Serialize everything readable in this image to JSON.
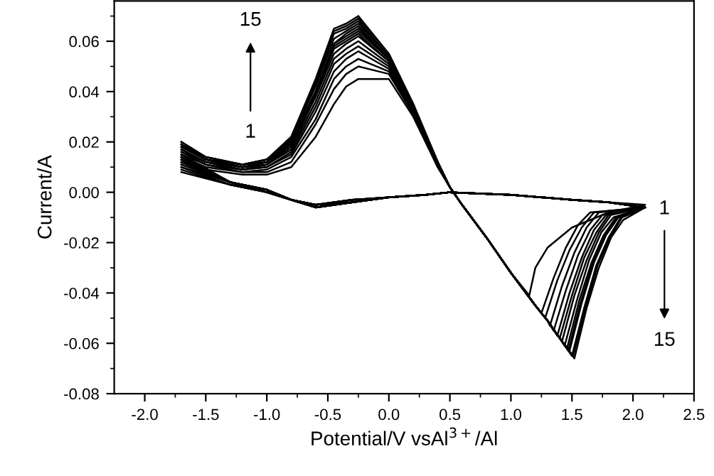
{
  "chart_data": {
    "type": "line",
    "xlabel": "Potential/V vsAl$^{3+}$/Al",
    "ylabel": "Current/A",
    "xlim": [
      -2.25,
      2.5
    ],
    "ylim": [
      -0.08,
      0.076
    ],
    "xticks": [
      {
        "value": -2.0,
        "label": "-2.0"
      },
      {
        "value": -1.75,
        "label": null
      },
      {
        "value": -1.5,
        "label": "-1.5"
      },
      {
        "value": -1.25,
        "label": null
      },
      {
        "value": -1.0,
        "label": "-1.0"
      },
      {
        "value": -0.75,
        "label": null
      },
      {
        "value": -0.5,
        "label": "-0.5"
      },
      {
        "value": -0.25,
        "label": null
      },
      {
        "value": 0.0,
        "label": "0.0"
      },
      {
        "value": 0.25,
        "label": null
      },
      {
        "value": 0.5,
        "label": "0.5"
      },
      {
        "value": 0.75,
        "label": null
      },
      {
        "value": 1.0,
        "label": "1.0"
      },
      {
        "value": 1.25,
        "label": null
      },
      {
        "value": 1.5,
        "label": "1.5"
      },
      {
        "value": 1.75,
        "label": null
      },
      {
        "value": 2.0,
        "label": "2.0"
      },
      {
        "value": 2.25,
        "label": null
      },
      {
        "value": 2.5,
        "label": "2.5"
      }
    ],
    "yticks": [
      {
        "value": -0.08,
        "label": "-0.08"
      },
      {
        "value": -0.07,
        "label": null
      },
      {
        "value": -0.06,
        "label": "-0.06"
      },
      {
        "value": -0.05,
        "label": null
      },
      {
        "value": -0.04,
        "label": "-0.04"
      },
      {
        "value": -0.03,
        "label": null
      },
      {
        "value": -0.02,
        "label": "-0.02"
      },
      {
        "value": -0.01,
        "label": null
      },
      {
        "value": 0.0,
        "label": "0.00"
      },
      {
        "value": 0.01,
        "label": null
      },
      {
        "value": 0.02,
        "label": "0.02"
      },
      {
        "value": 0.03,
        "label": null
      },
      {
        "value": 0.04,
        "label": "0.04"
      },
      {
        "value": 0.05,
        "label": null
      },
      {
        "value": 0.06,
        "label": "0.06"
      },
      {
        "value": 0.07,
        "label": null
      }
    ],
    "grid": false,
    "marker": "none",
    "line_style": "solid",
    "annotations": [
      "1",
      "15",
      "1",
      "15"
    ],
    "series": [
      {
        "color": "#000000",
        "x": [
          -1.7,
          -1.5,
          -1.2,
          -1.0,
          -0.8,
          -0.6,
          -0.45,
          -0.35,
          -0.25,
          0.0,
          0.2,
          0.4,
          0.5,
          0.6,
          0.8,
          1.0,
          1.15,
          1.2,
          1.3,
          1.5,
          1.8,
          2.1,
          1.8,
          1.5,
          1.0,
          0.5,
          0.3,
          0.0,
          -0.3,
          -0.6,
          -0.8,
          -1.0,
          -1.3,
          -1.7
        ],
        "values": [
          0.012,
          0.009,
          0.007,
          0.007,
          0.01,
          0.022,
          0.035,
          0.042,
          0.045,
          0.045,
          0.03,
          0.01,
          0.002,
          -0.005,
          -0.018,
          -0.032,
          -0.041,
          -0.03,
          -0.022,
          -0.014,
          -0.008,
          -0.005,
          -0.004,
          -0.003,
          -0.001,
          0.0,
          -0.001,
          -0.002,
          -0.003,
          -0.005,
          -0.003,
          0.0,
          0.003,
          0.008
        ]
      },
      {
        "color": "#000000",
        "x": [
          -1.7,
          -1.5,
          -1.2,
          -1.0,
          -0.8,
          -0.6,
          -0.45,
          -0.35,
          -0.25,
          0.0,
          0.2,
          0.4,
          0.5,
          0.6,
          0.8,
          1.0,
          1.2,
          1.25,
          1.35,
          1.45,
          1.55,
          1.65,
          2.1,
          1.8,
          1.5,
          1.0,
          0.5,
          0.3,
          0.0,
          -0.3,
          -0.6,
          -0.8,
          -1.0,
          -1.3,
          -1.7
        ],
        "values": [
          0.014,
          0.01,
          0.008,
          0.008,
          0.012,
          0.027,
          0.041,
          0.047,
          0.05,
          0.047,
          0.031,
          0.01,
          0.002,
          -0.005,
          -0.018,
          -0.032,
          -0.045,
          -0.048,
          -0.034,
          -0.022,
          -0.013,
          -0.008,
          -0.006,
          -0.004,
          -0.003,
          -0.001,
          0.0,
          -0.001,
          -0.002,
          -0.003,
          -0.005,
          -0.003,
          0.0,
          0.003,
          0.009
        ]
      },
      {
        "color": "#000000",
        "x": [
          -1.7,
          -1.5,
          -1.2,
          -1.0,
          -0.8,
          -0.6,
          -0.45,
          -0.35,
          -0.25,
          0.0,
          0.2,
          0.4,
          0.5,
          0.6,
          0.8,
          1.0,
          1.2,
          1.28,
          1.38,
          1.48,
          1.58,
          1.68,
          2.1,
          1.8,
          1.5,
          1.0,
          0.5,
          0.3,
          0.0,
          -0.3,
          -0.6,
          -0.8,
          -1.0,
          -1.3,
          -1.7
        ],
        "values": [
          0.015,
          0.011,
          0.008,
          0.009,
          0.014,
          0.029,
          0.045,
          0.05,
          0.053,
          0.048,
          0.032,
          0.011,
          0.002,
          -0.005,
          -0.018,
          -0.032,
          -0.045,
          -0.05,
          -0.035,
          -0.023,
          -0.014,
          -0.008,
          -0.006,
          -0.004,
          -0.003,
          -0.001,
          0.0,
          -0.001,
          -0.002,
          -0.003,
          -0.005,
          -0.003,
          0.0,
          0.003,
          0.01
        ]
      },
      {
        "color": "#000000",
        "x": [
          -1.7,
          -1.5,
          -1.2,
          -1.0,
          -0.8,
          -0.6,
          -0.45,
          -0.35,
          -0.25,
          0.0,
          0.2,
          0.4,
          0.5,
          0.6,
          0.8,
          1.0,
          1.2,
          1.3,
          1.32,
          1.42,
          1.52,
          1.62,
          1.72,
          2.1,
          1.8,
          1.5,
          1.0,
          0.5,
          0.3,
          0.0,
          -0.3,
          -0.6,
          -0.8,
          -1.0,
          -1.3,
          -1.7
        ],
        "values": [
          0.016,
          0.011,
          0.009,
          0.01,
          0.015,
          0.032,
          0.048,
          0.053,
          0.056,
          0.049,
          0.032,
          0.011,
          0.002,
          -0.005,
          -0.018,
          -0.032,
          -0.045,
          -0.051,
          -0.053,
          -0.037,
          -0.024,
          -0.014,
          -0.008,
          -0.006,
          -0.004,
          -0.003,
          -0.001,
          0.0,
          -0.001,
          -0.002,
          -0.003,
          -0.005,
          -0.003,
          0.0,
          0.004,
          0.01
        ]
      },
      {
        "color": "#000000",
        "x": [
          -1.7,
          -1.5,
          -1.2,
          -1.0,
          -0.8,
          -0.6,
          -0.45,
          -0.35,
          -0.25,
          0.0,
          0.2,
          0.4,
          0.5,
          0.6,
          0.8,
          1.0,
          1.2,
          1.3,
          1.35,
          1.45,
          1.55,
          1.65,
          1.75,
          2.1,
          1.8,
          1.5,
          1.0,
          0.5,
          0.3,
          0.0,
          -0.3,
          -0.6,
          -0.8,
          -1.0,
          -1.3,
          -1.7
        ],
        "values": [
          0.016,
          0.012,
          0.009,
          0.01,
          0.016,
          0.034,
          0.051,
          0.055,
          0.058,
          0.05,
          0.033,
          0.011,
          0.002,
          -0.005,
          -0.018,
          -0.032,
          -0.045,
          -0.051,
          -0.055,
          -0.039,
          -0.025,
          -0.015,
          -0.009,
          -0.006,
          -0.004,
          -0.003,
          -0.001,
          0.0,
          -0.001,
          -0.002,
          -0.003,
          -0.005,
          -0.003,
          0.0,
          0.004,
          0.011
        ]
      },
      {
        "color": "#000000",
        "x": [
          -1.7,
          -1.5,
          -1.2,
          -1.0,
          -0.8,
          -0.6,
          -0.45,
          -0.35,
          -0.25,
          0.0,
          0.2,
          0.4,
          0.5,
          0.6,
          0.8,
          1.0,
          1.2,
          1.3,
          1.38,
          1.48,
          1.58,
          1.68,
          1.78,
          2.1,
          1.8,
          1.5,
          1.0,
          0.5,
          0.3,
          0.0,
          -0.3,
          -0.6,
          -0.8,
          -1.0,
          -1.3,
          -1.7
        ],
        "values": [
          0.017,
          0.012,
          0.009,
          0.011,
          0.017,
          0.036,
          0.053,
          0.057,
          0.06,
          0.051,
          0.033,
          0.011,
          0.002,
          -0.005,
          -0.018,
          -0.032,
          -0.045,
          -0.051,
          -0.057,
          -0.04,
          -0.026,
          -0.015,
          -0.009,
          -0.006,
          -0.004,
          -0.003,
          -0.001,
          0.0,
          -0.001,
          -0.002,
          -0.004,
          -0.005,
          -0.003,
          0.0,
          0.004,
          0.011
        ]
      },
      {
        "color": "#000000",
        "x": [
          -1.7,
          -1.5,
          -1.2,
          -1.0,
          -0.8,
          -0.6,
          -0.45,
          -0.35,
          -0.25,
          0.0,
          0.2,
          0.4,
          0.5,
          0.6,
          0.8,
          1.0,
          1.2,
          1.3,
          1.4,
          1.5,
          1.6,
          1.7,
          1.8,
          2.1,
          1.8,
          1.5,
          1.0,
          0.5,
          0.3,
          0.0,
          -0.3,
          -0.6,
          -0.8,
          -1.0,
          -1.3,
          -1.7
        ],
        "values": [
          0.017,
          0.012,
          0.01,
          0.011,
          0.018,
          0.038,
          0.055,
          0.059,
          0.062,
          0.052,
          0.033,
          0.011,
          0.002,
          -0.005,
          -0.018,
          -0.032,
          -0.045,
          -0.051,
          -0.058,
          -0.041,
          -0.026,
          -0.016,
          -0.009,
          -0.006,
          -0.004,
          -0.003,
          -0.001,
          0.0,
          -0.001,
          -0.002,
          -0.004,
          -0.005,
          -0.003,
          0.0,
          0.004,
          0.012
        ]
      },
      {
        "color": "#000000",
        "x": [
          -1.7,
          -1.5,
          -1.2,
          -1.0,
          -0.8,
          -0.6,
          -0.45,
          -0.35,
          -0.25,
          0.0,
          0.2,
          0.4,
          0.5,
          0.6,
          0.8,
          1.0,
          1.2,
          1.3,
          1.4,
          1.42,
          1.52,
          1.62,
          1.72,
          1.82,
          2.1,
          1.8,
          1.5,
          1.0,
          0.5,
          0.3,
          0.0,
          -0.3,
          -0.6,
          -0.8,
          -1.0,
          -1.3,
          -1.7
        ],
        "values": [
          0.018,
          0.013,
          0.01,
          0.011,
          0.019,
          0.039,
          0.057,
          0.06,
          0.063,
          0.052,
          0.034,
          0.011,
          0.002,
          -0.005,
          -0.018,
          -0.032,
          -0.045,
          -0.051,
          -0.058,
          -0.059,
          -0.041,
          -0.027,
          -0.016,
          -0.009,
          -0.006,
          -0.004,
          -0.003,
          -0.001,
          0.0,
          -0.001,
          -0.002,
          -0.004,
          -0.006,
          -0.003,
          0.001,
          0.004,
          0.012
        ]
      },
      {
        "color": "#000000",
        "x": [
          -1.7,
          -1.5,
          -1.2,
          -1.0,
          -0.8,
          -0.6,
          -0.45,
          -0.35,
          -0.25,
          0.0,
          0.2,
          0.4,
          0.5,
          0.6,
          0.8,
          1.0,
          1.2,
          1.3,
          1.4,
          1.44,
          1.54,
          1.64,
          1.74,
          1.84,
          2.1,
          1.8,
          1.5,
          1.0,
          0.5,
          0.3,
          0.0,
          -0.3,
          -0.6,
          -0.8,
          -1.0,
          -1.3,
          -1.7
        ],
        "values": [
          0.018,
          0.013,
          0.01,
          0.012,
          0.019,
          0.039,
          0.058,
          0.061,
          0.064,
          0.053,
          0.034,
          0.012,
          0.002,
          -0.005,
          -0.018,
          -0.032,
          -0.045,
          -0.051,
          -0.058,
          -0.061,
          -0.043,
          -0.027,
          -0.016,
          -0.01,
          -0.006,
          -0.004,
          -0.003,
          -0.001,
          0.0,
          -0.001,
          -0.002,
          -0.004,
          -0.006,
          -0.003,
          0.001,
          0.004,
          0.013
        ]
      },
      {
        "color": "#000000",
        "x": [
          -1.7,
          -1.5,
          -1.2,
          -1.0,
          -0.8,
          -0.6,
          -0.45,
          -0.35,
          -0.25,
          0.0,
          0.2,
          0.4,
          0.5,
          0.6,
          0.8,
          1.0,
          1.2,
          1.3,
          1.4,
          1.46,
          1.56,
          1.66,
          1.76,
          1.86,
          2.1,
          1.8,
          1.5,
          1.0,
          0.5,
          0.3,
          0.0,
          -0.3,
          -0.6,
          -0.8,
          -1.0,
          -1.3,
          -1.7
        ],
        "values": [
          0.018,
          0.013,
          0.01,
          0.012,
          0.02,
          0.04,
          0.059,
          0.062,
          0.065,
          0.053,
          0.034,
          0.012,
          0.002,
          -0.005,
          -0.018,
          -0.032,
          -0.045,
          -0.051,
          -0.058,
          -0.062,
          -0.043,
          -0.028,
          -0.017,
          -0.01,
          -0.006,
          -0.004,
          -0.003,
          -0.001,
          0.0,
          -0.001,
          -0.002,
          -0.004,
          -0.006,
          -0.003,
          0.001,
          0.004,
          0.013
        ]
      },
      {
        "color": "#000000",
        "x": [
          -1.7,
          -1.5,
          -1.2,
          -1.0,
          -0.8,
          -0.6,
          -0.45,
          -0.35,
          -0.25,
          0.0,
          0.2,
          0.4,
          0.5,
          0.6,
          0.8,
          1.0,
          1.2,
          1.3,
          1.4,
          1.47,
          1.57,
          1.67,
          1.77,
          1.87,
          2.1,
          1.8,
          1.5,
          1.0,
          0.5,
          0.3,
          0.0,
          -0.3,
          -0.6,
          -0.8,
          -1.0,
          -1.3,
          -1.7
        ],
        "values": [
          0.019,
          0.013,
          0.01,
          0.012,
          0.02,
          0.04,
          0.059,
          0.063,
          0.066,
          0.053,
          0.034,
          0.012,
          0.002,
          -0.005,
          -0.018,
          -0.032,
          -0.045,
          -0.051,
          -0.058,
          -0.063,
          -0.044,
          -0.028,
          -0.017,
          -0.01,
          -0.006,
          -0.004,
          -0.003,
          -0.001,
          0.0,
          -0.001,
          -0.002,
          -0.004,
          -0.006,
          -0.003,
          0.001,
          0.004,
          0.013
        ]
      },
      {
        "color": "#000000",
        "x": [
          -1.7,
          -1.5,
          -1.2,
          -1.0,
          -0.8,
          -0.6,
          -0.45,
          -0.35,
          -0.25,
          0.0,
          0.2,
          0.4,
          0.5,
          0.6,
          0.8,
          1.0,
          1.2,
          1.3,
          1.4,
          1.48,
          1.58,
          1.68,
          1.78,
          1.88,
          2.1,
          1.8,
          1.5,
          1.0,
          0.5,
          0.3,
          0.0,
          -0.3,
          -0.6,
          -0.8,
          -1.0,
          -1.3,
          -1.7
        ],
        "values": [
          0.019,
          0.013,
          0.011,
          0.012,
          0.021,
          0.042,
          0.061,
          0.064,
          0.067,
          0.054,
          0.034,
          0.012,
          0.002,
          -0.005,
          -0.018,
          -0.032,
          -0.045,
          -0.051,
          -0.058,
          -0.063,
          -0.044,
          -0.028,
          -0.017,
          -0.01,
          -0.006,
          -0.004,
          -0.003,
          -0.001,
          0.0,
          -0.001,
          -0.002,
          -0.004,
          -0.006,
          -0.003,
          0.001,
          0.004,
          0.014
        ]
      },
      {
        "color": "#000000",
        "x": [
          -1.7,
          -1.5,
          -1.2,
          -1.0,
          -0.8,
          -0.6,
          -0.45,
          -0.35,
          -0.25,
          0.0,
          0.2,
          0.4,
          0.5,
          0.6,
          0.8,
          1.0,
          1.2,
          1.3,
          1.4,
          1.5,
          1.6,
          1.7,
          1.8,
          1.9,
          2.1,
          1.8,
          1.5,
          1.0,
          0.5,
          0.3,
          0.0,
          -0.3,
          -0.6,
          -0.8,
          -1.0,
          -1.3,
          -1.7
        ],
        "values": [
          0.019,
          0.014,
          0.011,
          0.013,
          0.021,
          0.043,
          0.063,
          0.065,
          0.068,
          0.054,
          0.035,
          0.012,
          0.002,
          -0.005,
          -0.018,
          -0.032,
          -0.045,
          -0.051,
          -0.058,
          -0.065,
          -0.046,
          -0.029,
          -0.018,
          -0.01,
          -0.006,
          -0.004,
          -0.003,
          -0.001,
          0.0,
          -0.001,
          -0.002,
          -0.004,
          -0.006,
          -0.003,
          0.001,
          0.004,
          0.014
        ]
      },
      {
        "color": "#000000",
        "x": [
          -1.7,
          -1.5,
          -1.2,
          -1.0,
          -0.8,
          -0.6,
          -0.45,
          -0.35,
          -0.25,
          0.0,
          0.2,
          0.4,
          0.5,
          0.6,
          0.8,
          1.0,
          1.2,
          1.3,
          1.4,
          1.51,
          1.61,
          1.71,
          1.81,
          1.91,
          2.1,
          1.8,
          1.5,
          1.0,
          0.5,
          0.3,
          0.0,
          -0.3,
          -0.6,
          -0.8,
          -1.0,
          -1.3,
          -1.7
        ],
        "values": [
          0.02,
          0.014,
          0.011,
          0.013,
          0.022,
          0.044,
          0.064,
          0.066,
          0.069,
          0.055,
          0.035,
          0.012,
          0.002,
          -0.005,
          -0.018,
          -0.032,
          -0.045,
          -0.051,
          -0.058,
          -0.065,
          -0.046,
          -0.029,
          -0.018,
          -0.01,
          -0.006,
          -0.004,
          -0.003,
          -0.001,
          0.0,
          -0.001,
          -0.002,
          -0.004,
          -0.006,
          -0.003,
          0.001,
          0.004,
          0.014
        ]
      },
      {
        "color": "#000000",
        "x": [
          -1.7,
          -1.5,
          -1.2,
          -1.0,
          -0.8,
          -0.6,
          -0.45,
          -0.35,
          -0.25,
          0.0,
          0.2,
          0.4,
          0.5,
          0.6,
          0.8,
          1.0,
          1.2,
          1.3,
          1.4,
          1.52,
          1.62,
          1.72,
          1.82,
          1.92,
          2.1,
          1.8,
          1.5,
          1.0,
          0.5,
          0.3,
          0.0,
          -0.3,
          -0.6,
          -0.8,
          -1.0,
          -1.3,
          -1.7
        ],
        "values": [
          0.02,
          0.014,
          0.011,
          0.013,
          0.022,
          0.045,
          0.065,
          0.067,
          0.07,
          0.055,
          0.035,
          0.012,
          0.002,
          -0.005,
          -0.018,
          -0.032,
          -0.045,
          -0.051,
          -0.058,
          -0.066,
          -0.046,
          -0.03,
          -0.018,
          -0.011,
          -0.006,
          -0.004,
          -0.003,
          -0.001,
          0.0,
          -0.001,
          -0.002,
          -0.004,
          -0.006,
          -0.003,
          0.001,
          0.004,
          0.015
        ]
      }
    ]
  }
}
